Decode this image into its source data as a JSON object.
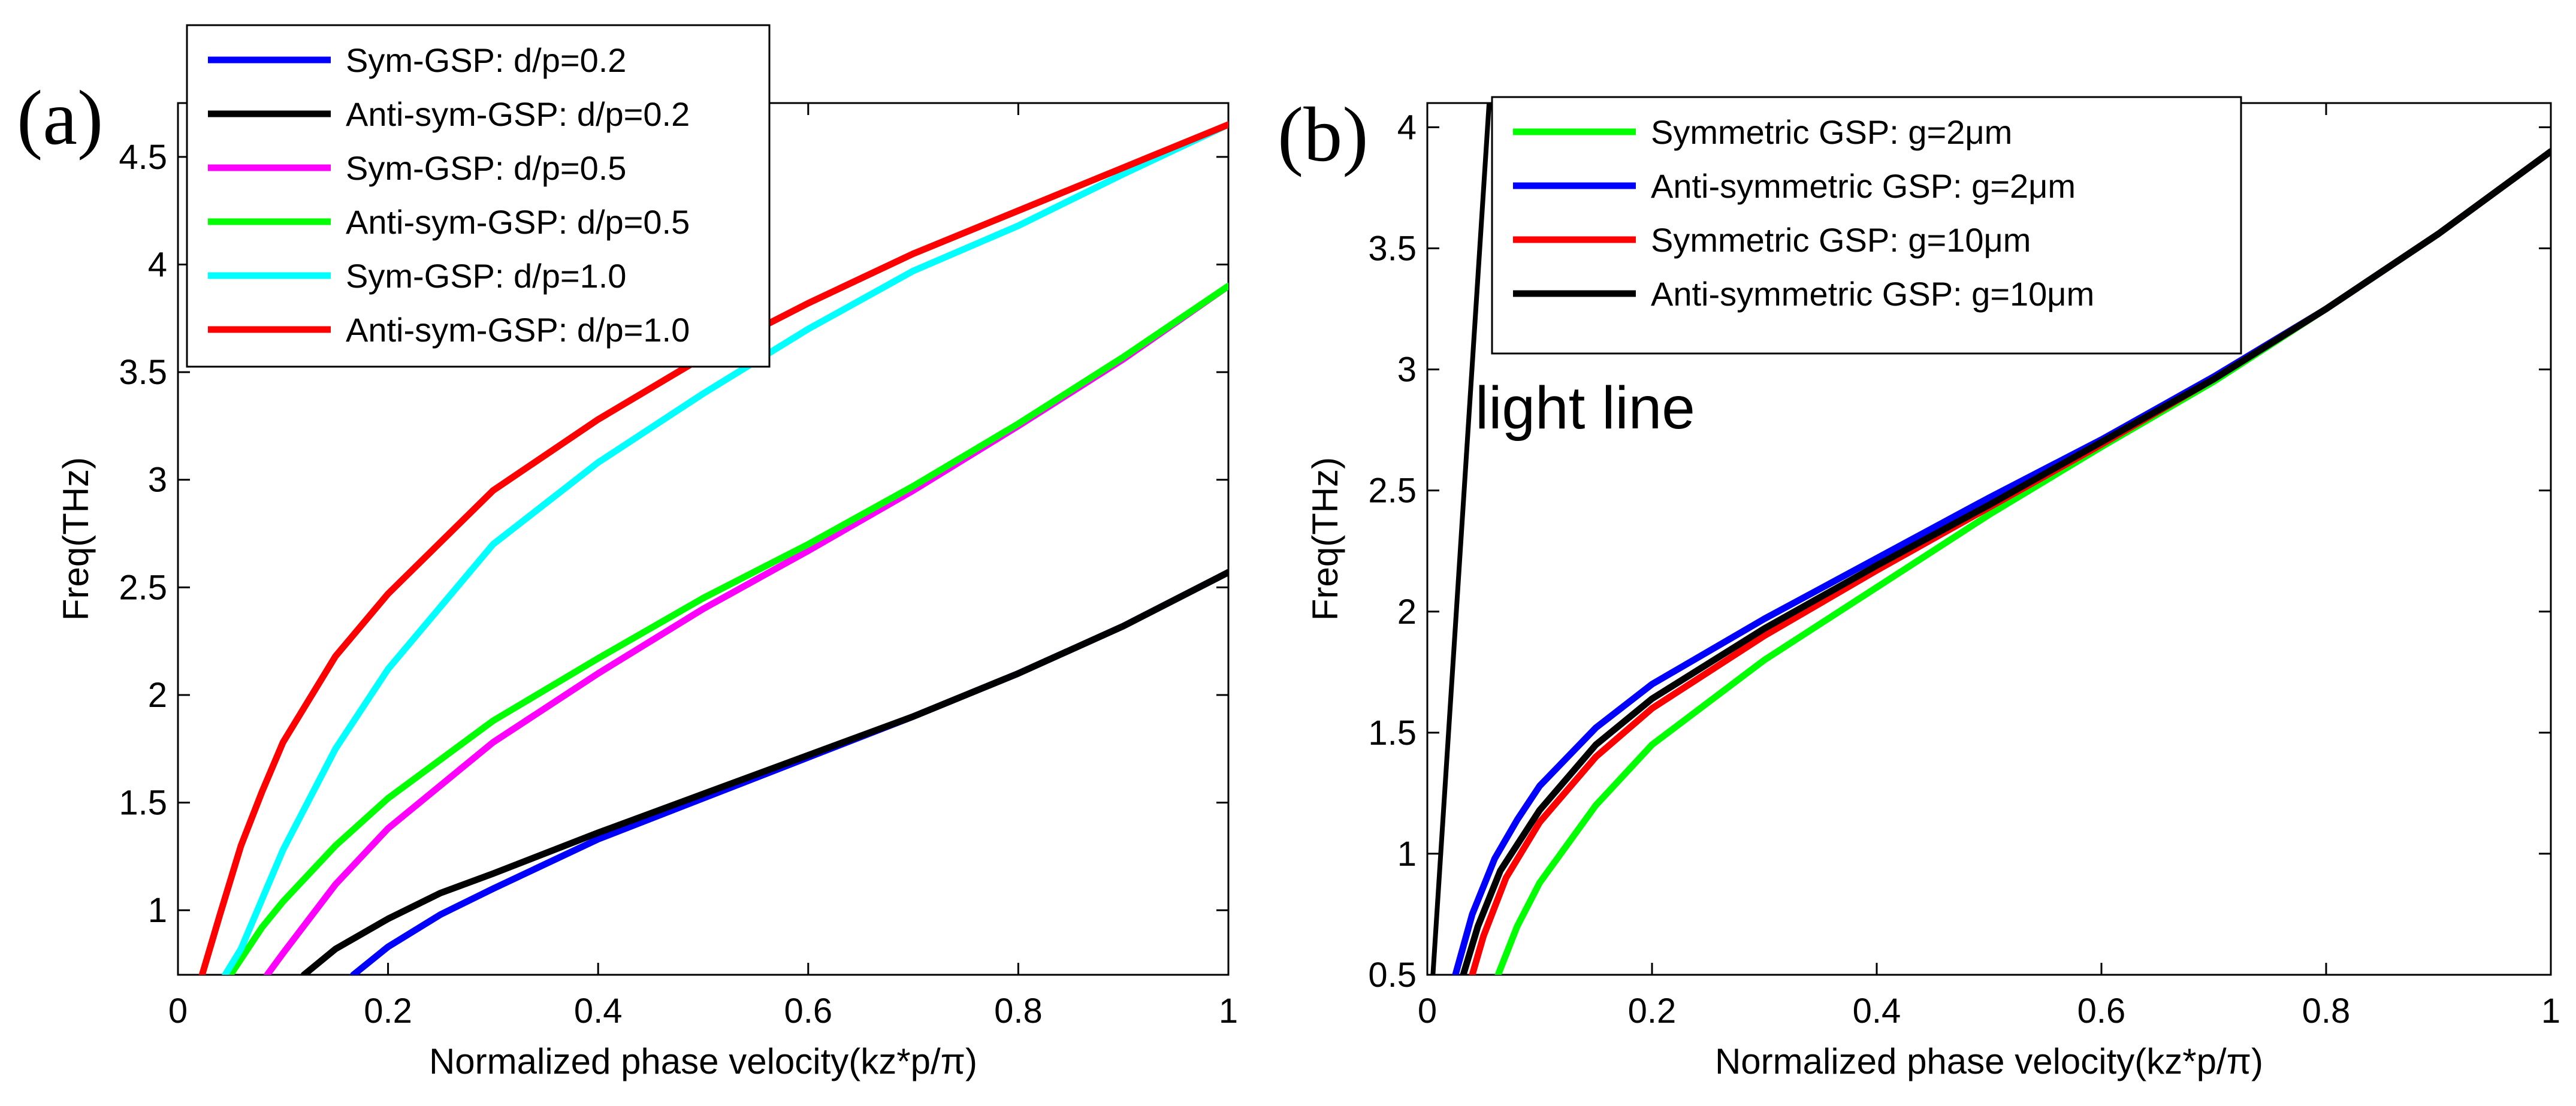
{
  "chart_data": [
    {
      "panel_label": "(a)",
      "type": "line",
      "xlabel": "Normalized phase velocity(kz*p/π)",
      "ylabel": "Freq(THz)",
      "xlim": [
        0,
        1
      ],
      "ylim": [
        0.7,
        4.75
      ],
      "xticks": [
        0,
        0.2,
        0.4,
        0.6,
        0.8,
        1
      ],
      "xtick_labels": [
        "0",
        "0.2",
        "0.4",
        "0.6",
        "0.8",
        "1"
      ],
      "yticks": [
        1,
        1.5,
        2,
        2.5,
        3,
        3.5,
        4,
        4.5
      ],
      "ytick_labels": [
        "1",
        "1.5",
        "2",
        "2.5",
        "3",
        "3.5",
        "4",
        "4.5"
      ],
      "legend_position": "top-left",
      "series": [
        {
          "name": "Sym-GSP: d/p=0.2",
          "color": "#0000ff",
          "x": [
            0.167,
            0.2,
            0.25,
            0.3,
            0.4,
            0.5,
            0.6,
            0.7,
            0.8,
            0.9,
            1.0
          ],
          "y": [
            0.7,
            0.83,
            0.98,
            1.1,
            1.33,
            1.52,
            1.71,
            1.9,
            2.1,
            2.32,
            2.57
          ]
        },
        {
          "name": "Anti-sym-GSP: d/p=0.2",
          "color": "#000000",
          "x": [
            0.12,
            0.15,
            0.2,
            0.25,
            0.3,
            0.4,
            0.5,
            0.6,
            0.7,
            0.8,
            0.9,
            1.0
          ],
          "y": [
            0.7,
            0.82,
            0.96,
            1.08,
            1.17,
            1.36,
            1.54,
            1.72,
            1.9,
            2.1,
            2.32,
            2.57
          ]
        },
        {
          "name": "Sym-GSP: d/p=0.5",
          "color": "#ff00ff",
          "x": [
            0.085,
            0.1,
            0.15,
            0.2,
            0.3,
            0.4,
            0.5,
            0.6,
            0.7,
            0.8,
            0.9,
            1.0
          ],
          "y": [
            0.7,
            0.8,
            1.12,
            1.38,
            1.78,
            2.1,
            2.4,
            2.67,
            2.95,
            3.25,
            3.56,
            3.9
          ]
        },
        {
          "name": "Anti-sym-GSP: d/p=0.5",
          "color": "#00ff00",
          "x": [
            0.05,
            0.08,
            0.1,
            0.15,
            0.2,
            0.3,
            0.4,
            0.5,
            0.6,
            0.7,
            0.8,
            0.9,
            1.0
          ],
          "y": [
            0.7,
            0.92,
            1.04,
            1.3,
            1.52,
            1.88,
            2.17,
            2.45,
            2.7,
            2.97,
            3.26,
            3.57,
            3.9
          ]
        },
        {
          "name": "Sym-GSP: d/p=1.0",
          "color": "#00ffff",
          "x": [
            0.045,
            0.06,
            0.08,
            0.1,
            0.15,
            0.2,
            0.3,
            0.4,
            0.5,
            0.6,
            0.7,
            0.8,
            0.9,
            1.0
          ],
          "y": [
            0.7,
            0.82,
            1.05,
            1.28,
            1.75,
            2.12,
            2.7,
            3.08,
            3.4,
            3.7,
            3.97,
            4.18,
            4.42,
            4.65
          ]
        },
        {
          "name": "Anti-sym-GSP: d/p=1.0",
          "color": "#ff0000",
          "x": [
            0.023,
            0.04,
            0.06,
            0.08,
            0.1,
            0.15,
            0.2,
            0.3,
            0.4,
            0.5,
            0.6,
            0.7,
            0.8,
            0.9,
            1.0
          ],
          "y": [
            0.7,
            0.98,
            1.3,
            1.55,
            1.78,
            2.18,
            2.47,
            2.95,
            3.28,
            3.57,
            3.82,
            4.05,
            4.25,
            4.45,
            4.65
          ]
        }
      ]
    },
    {
      "panel_label": "(b)",
      "type": "line",
      "xlabel": "Normalized phase velocity(kz*p/π)",
      "ylabel": "Freq(THz)",
      "xlim": [
        0,
        1
      ],
      "ylim": [
        0.5,
        4.1
      ],
      "xticks": [
        0,
        0.2,
        0.4,
        0.6,
        0.8,
        1
      ],
      "xtick_labels": [
        "0",
        "0.2",
        "0.4",
        "0.6",
        "0.8",
        "1"
      ],
      "yticks": [
        0.5,
        1,
        1.5,
        2,
        2.5,
        3,
        3.5,
        4
      ],
      "ytick_labels": [
        "0.5",
        "1",
        "1.5",
        "2",
        "2.5",
        "3",
        "3.5",
        "4"
      ],
      "legend_position": "top-center",
      "annotation": "light line",
      "light_line": {
        "x": [
          0.005,
          0.055
        ],
        "y": [
          0.5,
          4.1
        ]
      },
      "series": [
        {
          "name": "Symmetric GSP: g=2μm",
          "color": "#00ff00",
          "x": [
            0.063,
            0.08,
            0.1,
            0.15,
            0.2,
            0.3,
            0.4,
            0.5,
            0.6,
            0.7,
            0.8,
            0.9,
            1.0
          ],
          "y": [
            0.5,
            0.7,
            0.88,
            1.2,
            1.45,
            1.8,
            2.1,
            2.4,
            2.68,
            2.95,
            3.25,
            3.56,
            3.9
          ]
        },
        {
          "name": "Anti-symmetric GSP: g=2μm",
          "color": "#0000ff",
          "x": [
            0.025,
            0.04,
            0.06,
            0.08,
            0.1,
            0.15,
            0.2,
            0.3,
            0.4,
            0.5,
            0.6,
            0.7,
            0.8,
            0.9,
            1.0
          ],
          "y": [
            0.5,
            0.75,
            0.98,
            1.14,
            1.28,
            1.52,
            1.7,
            1.97,
            2.22,
            2.47,
            2.71,
            2.97,
            3.25,
            3.56,
            3.9
          ]
        },
        {
          "name": "Symmetric GSP: g=10μm",
          "color": "#ff0000",
          "x": [
            0.04,
            0.05,
            0.07,
            0.1,
            0.15,
            0.2,
            0.3,
            0.4,
            0.5,
            0.6,
            0.7,
            0.8,
            0.9,
            1.0
          ],
          "y": [
            0.5,
            0.66,
            0.9,
            1.13,
            1.4,
            1.6,
            1.9,
            2.17,
            2.43,
            2.69,
            2.96,
            3.25,
            3.56,
            3.9
          ]
        },
        {
          "name": "Anti-symmetric GSP: g=10μm",
          "color": "#000000",
          "x": [
            0.032,
            0.045,
            0.065,
            0.1,
            0.15,
            0.2,
            0.3,
            0.4,
            0.5,
            0.6,
            0.7,
            0.8,
            0.9,
            1.0
          ],
          "y": [
            0.5,
            0.7,
            0.93,
            1.18,
            1.45,
            1.64,
            1.93,
            2.19,
            2.44,
            2.7,
            2.96,
            3.25,
            3.56,
            3.9
          ]
        }
      ]
    }
  ]
}
